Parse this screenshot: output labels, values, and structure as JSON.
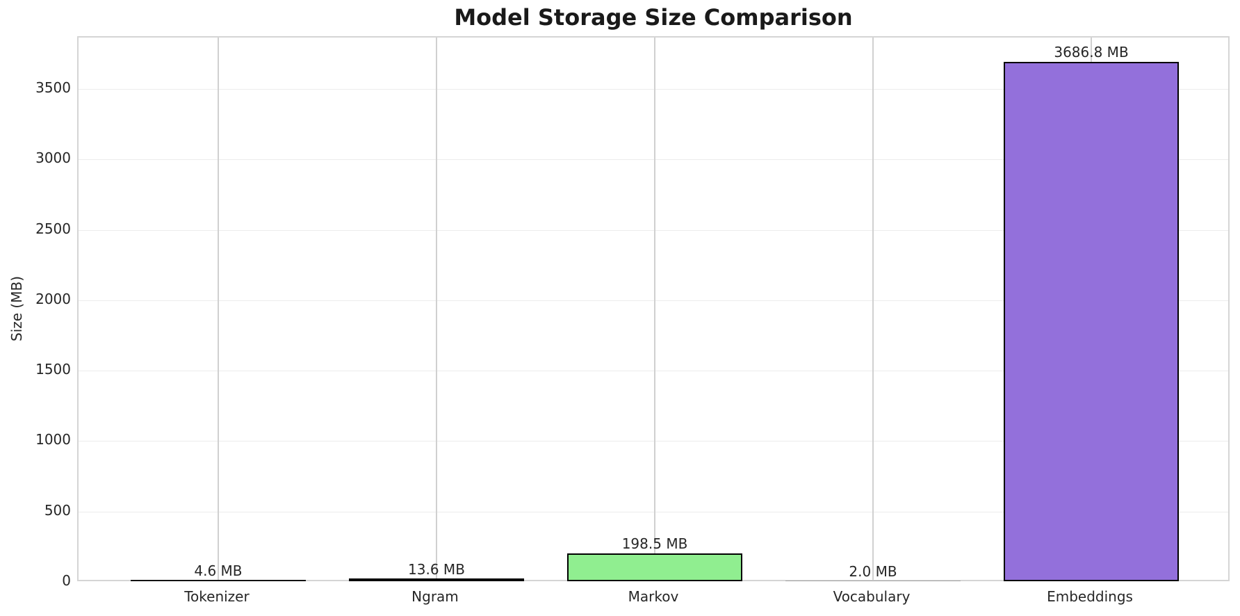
{
  "chart_data": {
    "type": "bar",
    "title": "Model Storage Size Comparison",
    "xlabel": "",
    "ylabel": "Size (MB)",
    "categories": [
      "Tokenizer",
      "Ngram",
      "Markov",
      "Vocabulary",
      "Embeddings"
    ],
    "values": [
      4.6,
      13.6,
      198.5,
      2.0,
      3686.8
    ],
    "bar_labels": [
      "4.6 MB",
      "13.6 MB",
      "198.5 MB",
      "2.0 MB",
      "3686.8 MB"
    ],
    "bar_colors": [
      null,
      null,
      "#90ee90",
      null,
      "#9370db"
    ],
    "bar_edge_color": "#000000",
    "ylim": [
      0,
      3871
    ],
    "yticks": [
      0,
      500,
      1000,
      1500,
      2000,
      2500,
      3000,
      3500
    ],
    "grid": true,
    "legend_position": null,
    "colors": {
      "title_text": "#1a1a1a",
      "label_text": "#262626",
      "grid_vertical": "#d0d0d0",
      "grid_horizontal": "#ececec",
      "spine": "#d5d5d5",
      "tiny_bar_dark": "#111111",
      "tiny_bar_faint": "#a6a6a6"
    }
  }
}
